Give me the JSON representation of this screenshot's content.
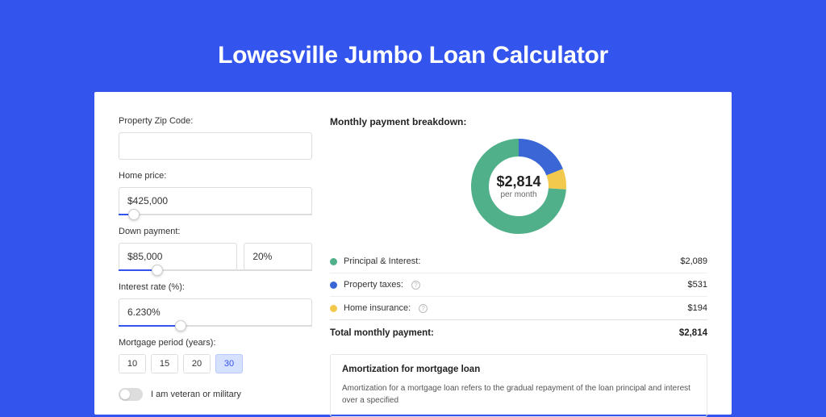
{
  "page": {
    "title": "Lowesville Jumbo Loan Calculator",
    "background_color": "#3355ee",
    "card_background": "#ffffff"
  },
  "form": {
    "zip": {
      "label": "Property Zip Code:",
      "value": ""
    },
    "home_price": {
      "label": "Home price:",
      "value": "$425,000",
      "slider_percent": 8
    },
    "down_payment": {
      "label": "Down payment:",
      "value": "$85,000",
      "percent": "20%",
      "slider_percent": 20
    },
    "interest": {
      "label": "Interest rate (%):",
      "value": "6.230%",
      "slider_percent": 32
    },
    "period": {
      "label": "Mortgage period (years):",
      "options": [
        "10",
        "15",
        "20",
        "30"
      ],
      "active_index": 3
    },
    "veteran": {
      "label": "I am veteran or military",
      "enabled": false
    }
  },
  "breakdown": {
    "title": "Monthly payment breakdown:",
    "donut": {
      "amount": "$2,814",
      "sub": "per month",
      "size": 118,
      "thickness": 22,
      "slices": [
        {
          "label": "Principal & Interest:",
          "value": "$2,089",
          "color": "#4fb08a",
          "percent": 74,
          "has_info": false
        },
        {
          "label": "Property taxes:",
          "value": "$531",
          "color": "#3a66d6",
          "percent": 19,
          "has_info": true
        },
        {
          "label": "Home insurance:",
          "value": "$194",
          "color": "#f3c94d",
          "percent": 7,
          "has_info": true
        }
      ],
      "start_angle_deg": 60
    },
    "total": {
      "label": "Total monthly payment:",
      "value": "$2,814"
    }
  },
  "amortization": {
    "title": "Amortization for mortgage loan",
    "text": "Amortization for a mortgage loan refers to the gradual repayment of the loan principal and interest over a specified"
  }
}
